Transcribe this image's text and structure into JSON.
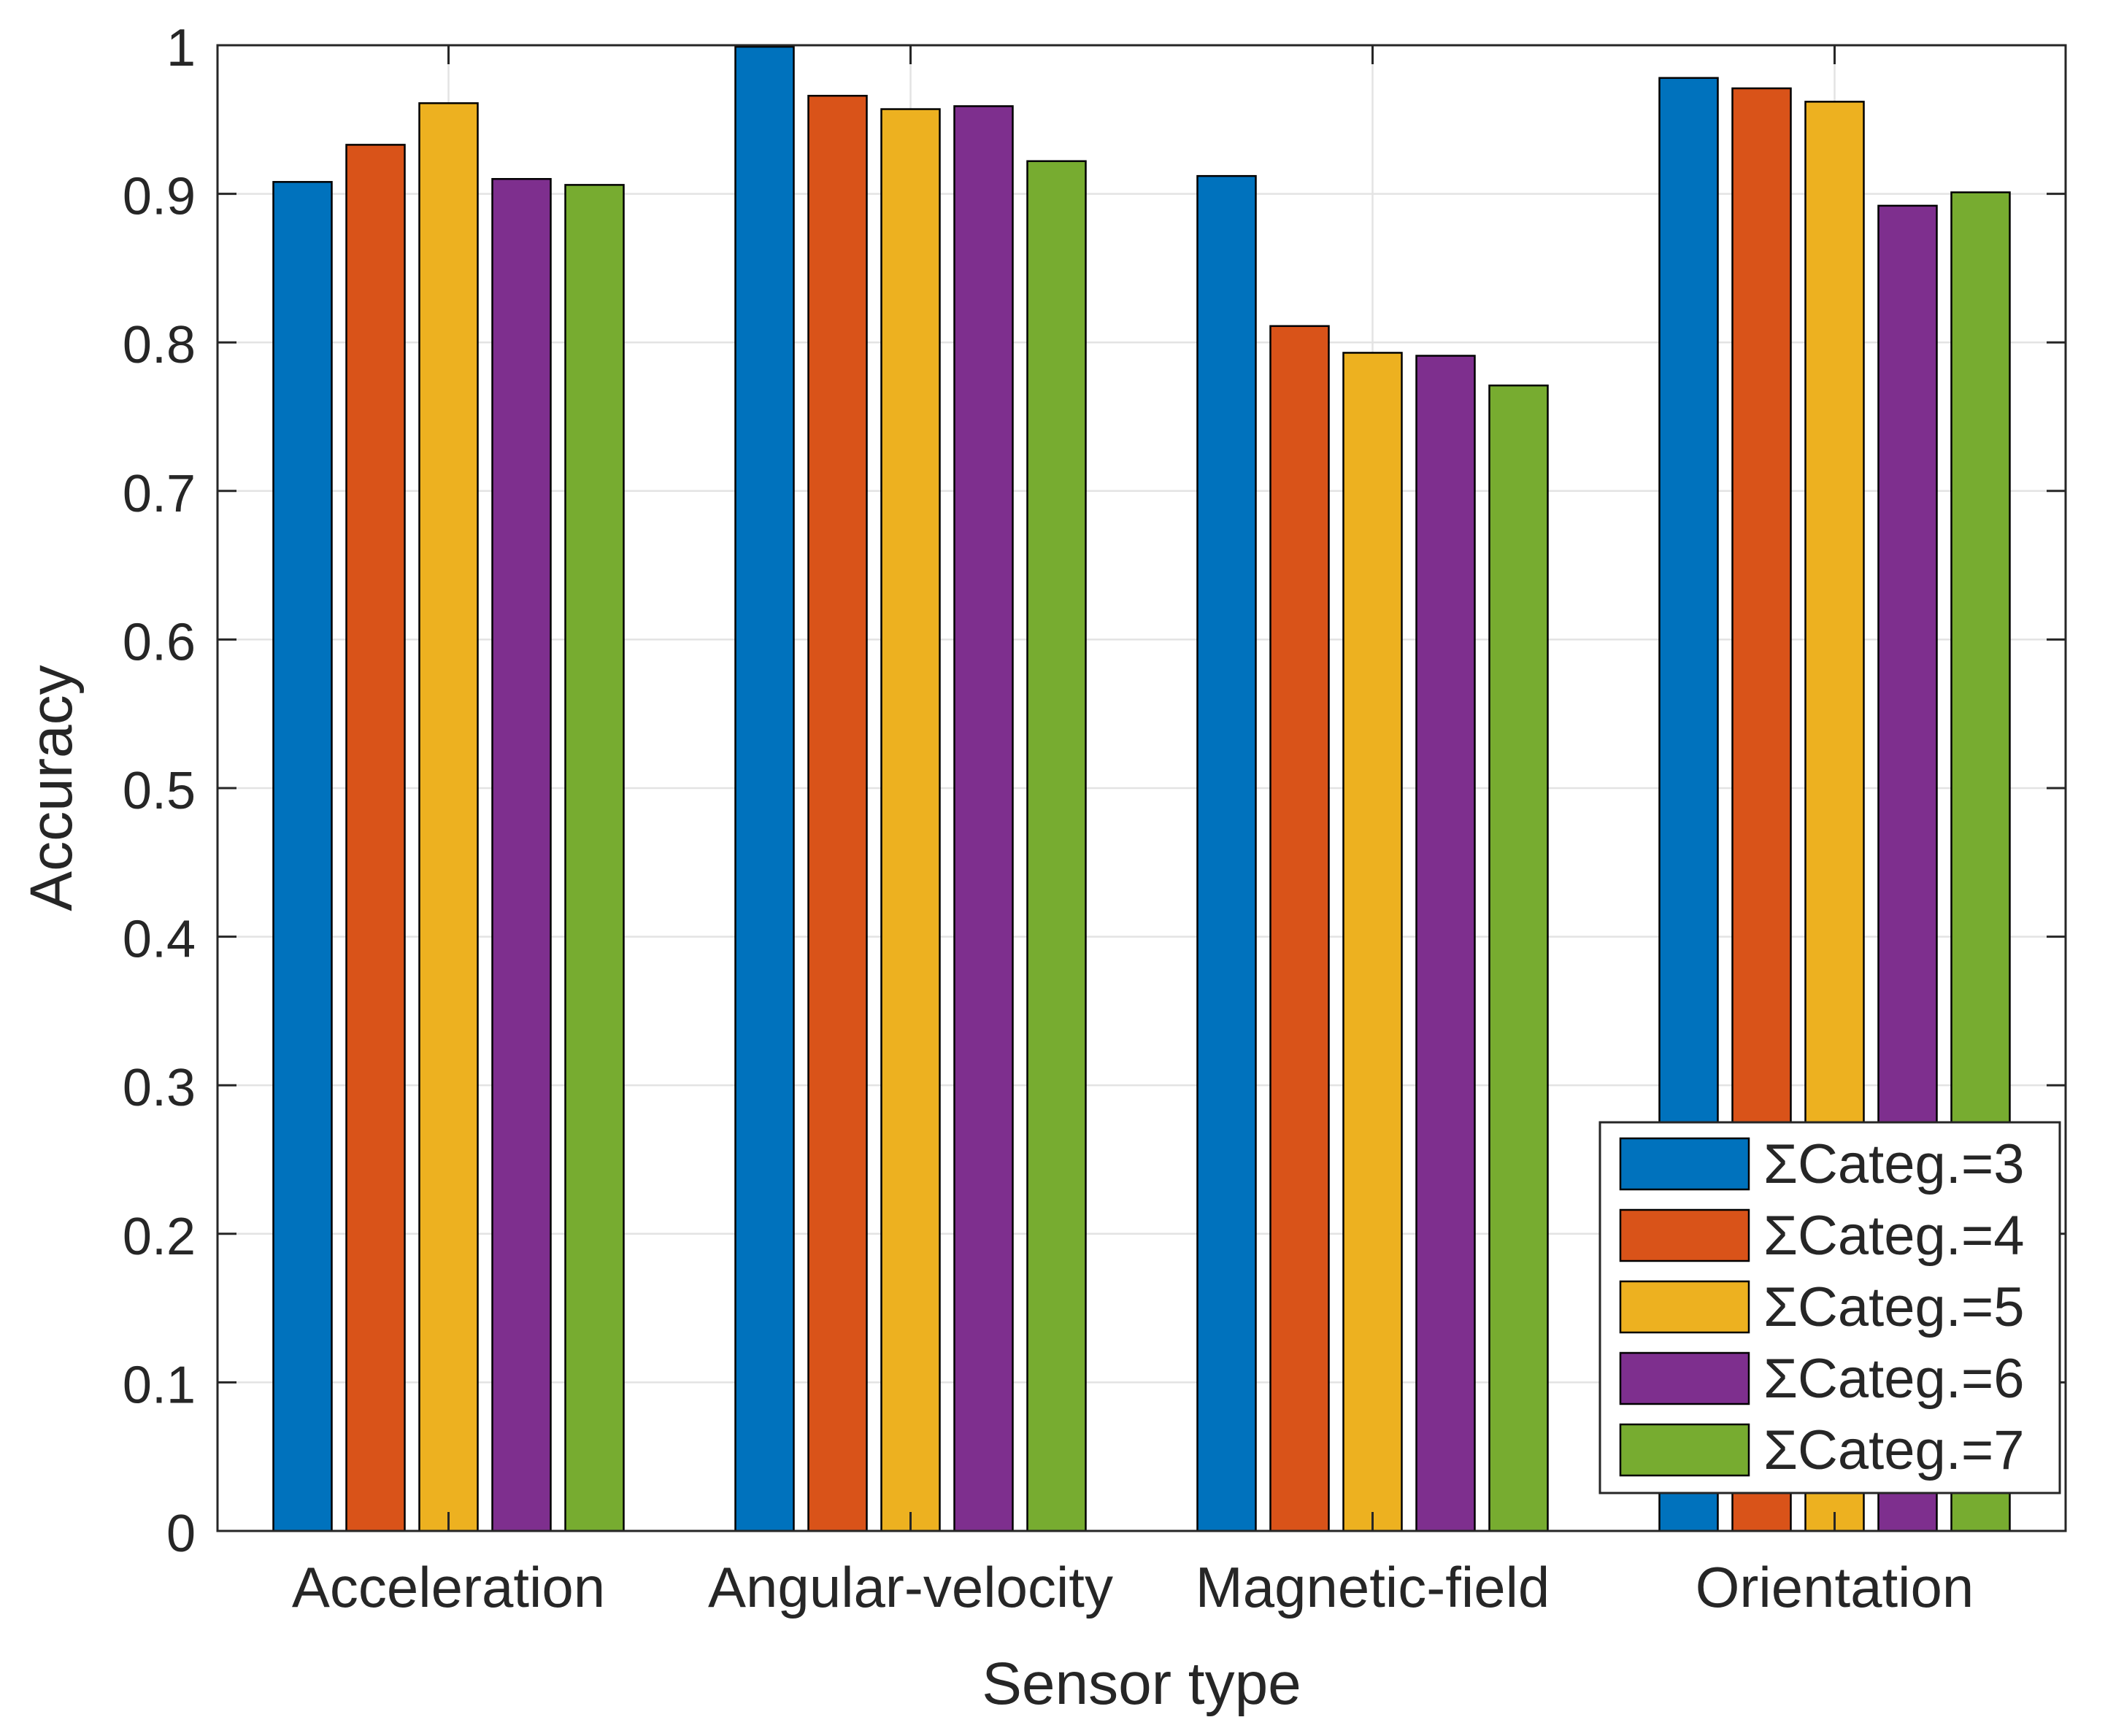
{
  "chart_data": {
    "type": "bar",
    "title": "",
    "xlabel": "Sensor type",
    "ylabel": "Accuracy",
    "categories": [
      "Acceleration",
      "Angular-velocity",
      "Magnetic-field",
      "Orientation"
    ],
    "ylim": [
      0,
      1
    ],
    "yticks": [
      "0",
      "0.1",
      "0.2",
      "0.3",
      "0.4",
      "0.5",
      "0.6",
      "0.7",
      "0.8",
      "0.9",
      "1"
    ],
    "grid": true,
    "legend_position": "bottom-right",
    "series": [
      {
        "name": "ΣCateg.=3",
        "color": "#0072BD",
        "values": [
          0.908,
          0.999,
          0.912,
          0.978
        ]
      },
      {
        "name": "ΣCateg.=4",
        "color": "#D95319",
        "values": [
          0.933,
          0.966,
          0.811,
          0.971
        ]
      },
      {
        "name": "ΣCateg.=5",
        "color": "#EDB120",
        "values": [
          0.961,
          0.957,
          0.793,
          0.962
        ]
      },
      {
        "name": "ΣCateg.=6",
        "color": "#7E2F8E",
        "values": [
          0.91,
          0.959,
          0.791,
          0.892
        ]
      },
      {
        "name": "ΣCateg.=7",
        "color": "#77AC30",
        "values": [
          0.906,
          0.922,
          0.771,
          0.901
        ]
      }
    ]
  }
}
